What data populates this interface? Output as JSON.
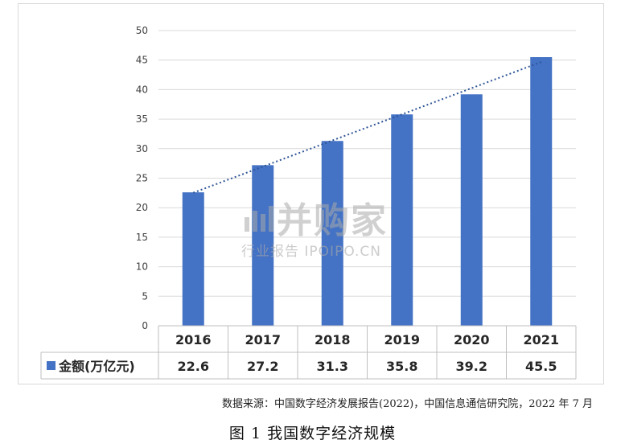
{
  "chart_data": {
    "type": "bar",
    "categories": [
      "2016",
      "2017",
      "2018",
      "2019",
      "2020",
      "2021"
    ],
    "series": [
      {
        "name": "金额(万亿元)",
        "values": [
          22.6,
          27.2,
          31.3,
          35.8,
          39.2,
          45.5
        ],
        "color": "#4472c4"
      }
    ],
    "trendline": {
      "type": "linear",
      "style": "dotted",
      "color": "#2f5597"
    },
    "yticks": [
      "0",
      "5",
      "10",
      "15",
      "20",
      "25",
      "30",
      "35",
      "40",
      "45",
      "50"
    ],
    "ylim": [
      0,
      50
    ],
    "grid": true,
    "data_table": true,
    "title": "",
    "xlabel": "",
    "ylabel": ""
  },
  "source_note": "数据来源：中国数字经济发展报告(2022)，中国信息通信研究院，2022 年 7 月",
  "figure_caption": "图 1  我国数字经济规模",
  "watermark": {
    "brand": "并购家",
    "sub": "行业报告 IPOIPO.CN"
  }
}
